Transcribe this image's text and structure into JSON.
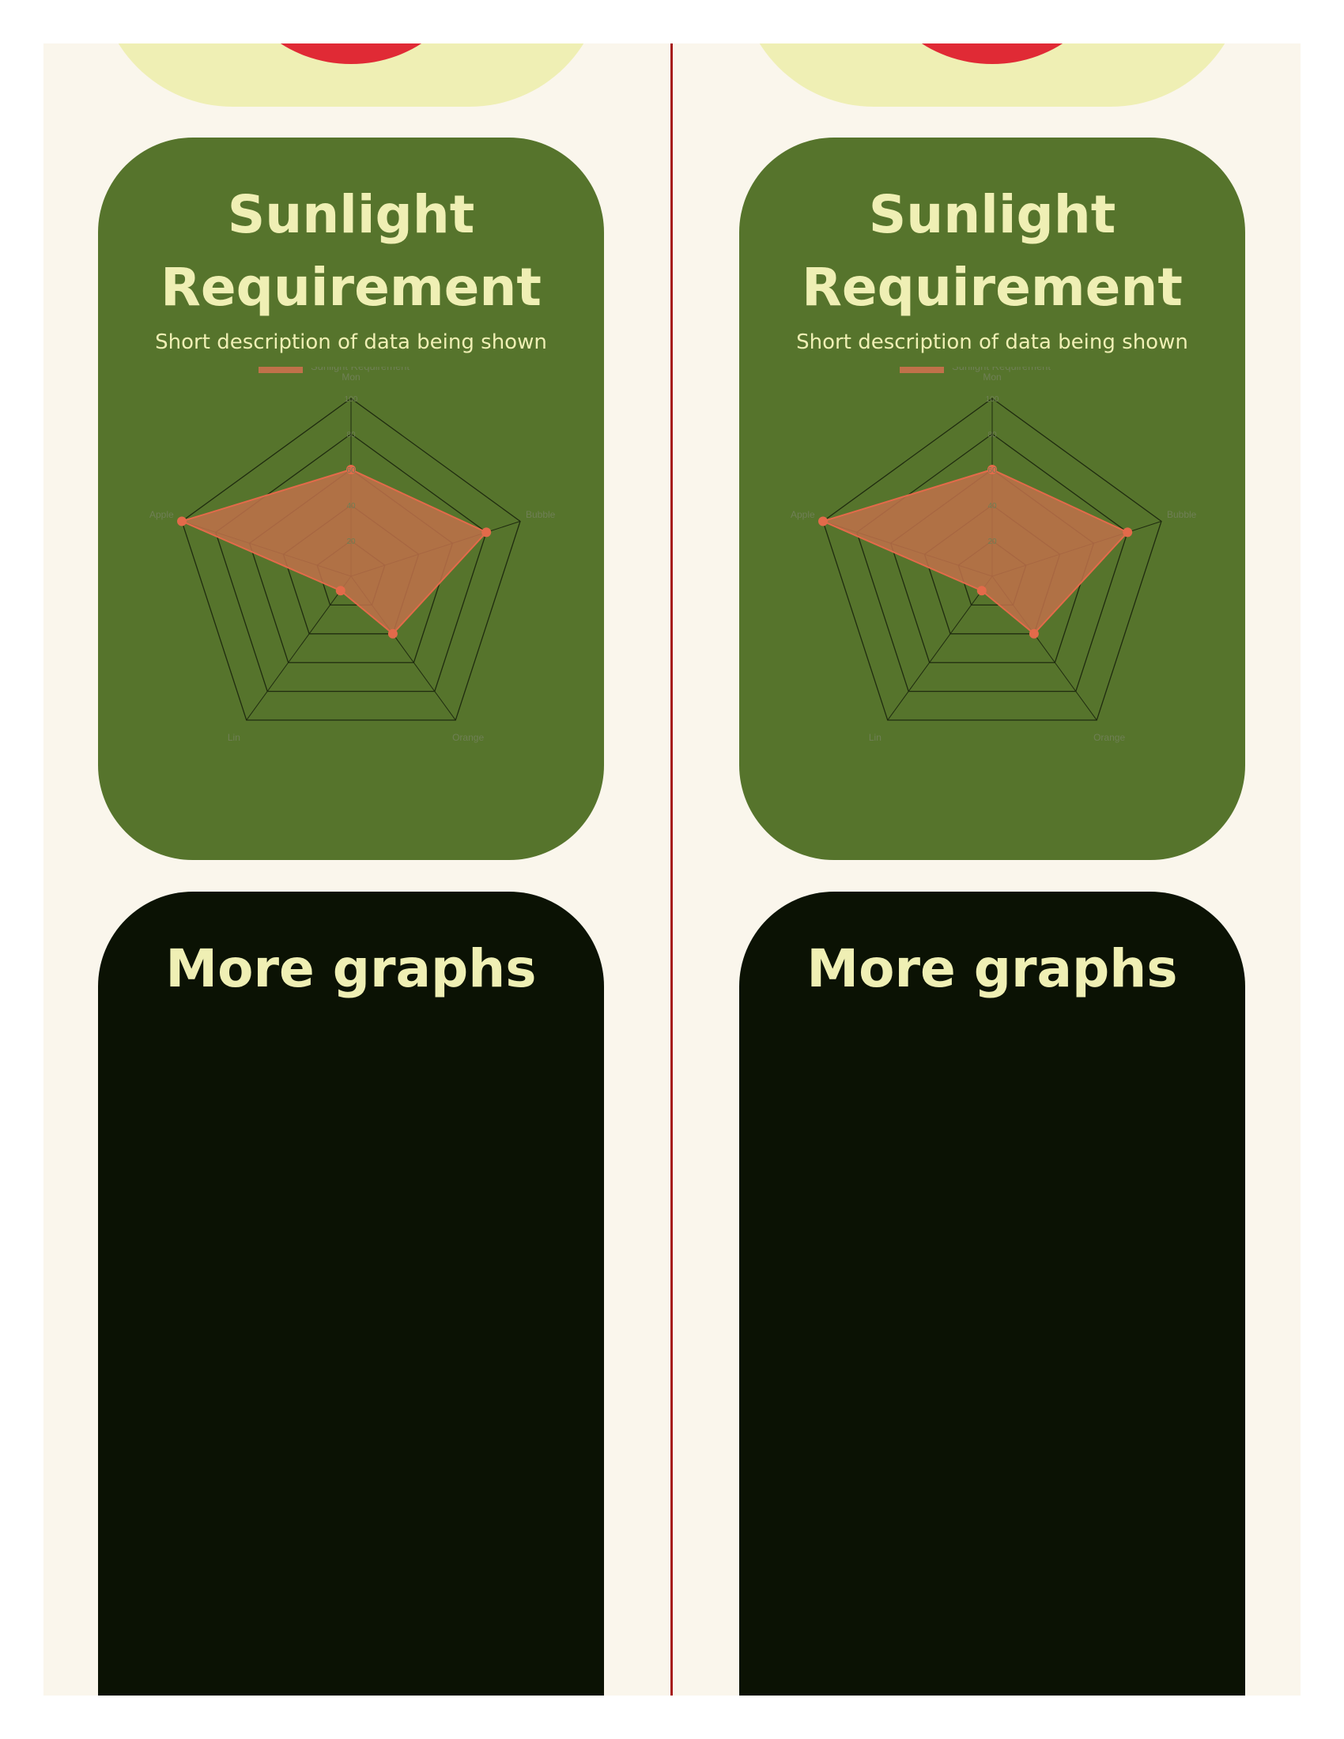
{
  "colors": {
    "page_bg": "#faf6ec",
    "divider": "#a61b1b",
    "top_card": "#efefb4",
    "top_accent": "#e02a35",
    "sun_card": "#56742c",
    "more_card": "#0b1204",
    "title_text": "#efefb4",
    "series_fill": "#c0714a",
    "series_point": "#e36a4a",
    "grid_line": "#1f2b0f",
    "axis_label": "#6f7f55"
  },
  "sun_card": {
    "title_line1": "Sunlight",
    "title_line2": "Requirement",
    "subtitle": "Short description of data being shown"
  },
  "more_card": {
    "title": "More graphs"
  },
  "chart_data": {
    "type": "radar",
    "categories": [
      "Mon",
      "Bubble",
      "Orange",
      "Lin",
      "Apple"
    ],
    "series": [
      {
        "name": "Sunlight Requirement",
        "values": [
          60,
          80,
          40,
          10,
          100
        ]
      }
    ],
    "rlim": [
      0,
      100
    ],
    "ticks": [
      0,
      20,
      40,
      60,
      80,
      100
    ],
    "legend": "top"
  }
}
